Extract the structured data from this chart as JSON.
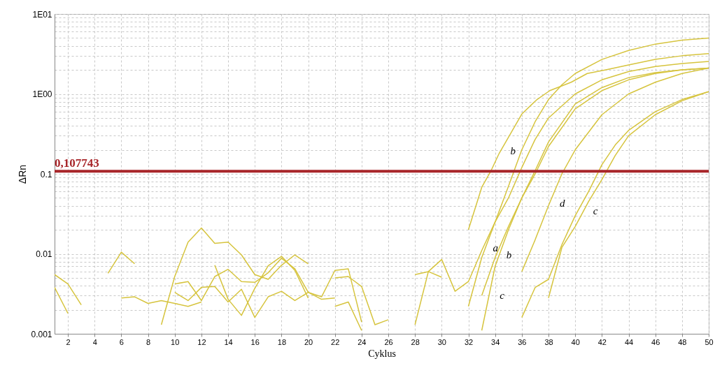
{
  "chart_data": {
    "type": "line",
    "xlabel": "Cyklus",
    "ylabel": "ΔRn",
    "log": "y",
    "grid": true,
    "marker": "none",
    "line_style": "solid",
    "xlim": [
      1,
      50
    ],
    "xticks": [
      2,
      4,
      6,
      8,
      10,
      12,
      14,
      16,
      18,
      20,
      22,
      24,
      26,
      28,
      30,
      32,
      34,
      36,
      38,
      40,
      42,
      44,
      46,
      48,
      50
    ],
    "ylim": [
      0.001,
      10
    ],
    "yticks": [
      0.001,
      {
        "value": 0.002,
        "label": null
      },
      {
        "value": 0.003,
        "label": null
      },
      {
        "value": 0.004,
        "label": null
      },
      {
        "value": 0.005,
        "label": null
      },
      {
        "value": 0.006,
        "label": null
      },
      {
        "value": 0.007,
        "label": null
      },
      {
        "value": 0.008,
        "label": null
      },
      {
        "value": 0.009,
        "label": null
      },
      0.01,
      {
        "value": 0.02,
        "label": null
      },
      {
        "value": 0.03,
        "label": null
      },
      {
        "value": 0.04,
        "label": null
      },
      {
        "value": 0.05,
        "label": null
      },
      {
        "value": 0.06,
        "label": null
      },
      {
        "value": 0.07,
        "label": null
      },
      {
        "value": 0.08,
        "label": null
      },
      {
        "value": 0.09,
        "label": null
      },
      0.1,
      {
        "value": 0.2,
        "label": null
      },
      {
        "value": 0.3,
        "label": null
      },
      {
        "value": 0.4,
        "label": null
      },
      {
        "value": 0.5,
        "label": null
      },
      {
        "value": 0.6,
        "label": null
      },
      {
        "value": 0.7,
        "label": null
      },
      {
        "value": 0.8,
        "label": null
      },
      {
        "value": 0.9,
        "label": null
      },
      {
        "value": 1,
        "label": "1E00"
      },
      {
        "value": 2,
        "label": null
      },
      {
        "value": 3,
        "label": null
      },
      {
        "value": 4,
        "label": null
      },
      {
        "value": 5,
        "label": null
      },
      {
        "value": 6,
        "label": null
      },
      {
        "value": 7,
        "label": null
      },
      {
        "value": 8,
        "label": null
      },
      {
        "value": 9,
        "label": null
      },
      {
        "value": 10,
        "label": "1E01"
      }
    ],
    "series": [
      {
        "color": "#d6c43e",
        "x": [
          32,
          33,
          33.7,
          34.3,
          35.3,
          36,
          37.1,
          38.1,
          39.7,
          40.9,
          42.3,
          44,
          46,
          48,
          50
        ],
        "values": [
          0.02,
          0.068,
          0.11,
          0.18,
          0.35,
          0.56,
          0.84,
          1.1,
          1.4,
          1.8,
          2.0,
          2.3,
          2.7,
          3.0,
          3.2
        ]
      },
      {
        "color": "#d6c43e",
        "x": [
          28,
          29,
          30,
          31,
          32,
          33,
          34,
          35,
          36,
          37,
          38,
          39,
          40,
          42,
          44,
          46,
          48,
          50
        ],
        "values": [
          0.0055,
          0.006,
          0.0085,
          0.0034,
          0.0045,
          0.011,
          0.025,
          0.07,
          0.2,
          0.45,
          0.85,
          1.3,
          1.8,
          2.7,
          3.5,
          4.2,
          4.7,
          5.0
        ]
      },
      {
        "color": "#d6c43e",
        "x": [
          32,
          33,
          34,
          35,
          36,
          37,
          38,
          40,
          42,
          44,
          46,
          48,
          50
        ],
        "values": [
          0.0022,
          0.009,
          0.025,
          0.05,
          0.12,
          0.27,
          0.5,
          1.0,
          1.5,
          1.9,
          2.2,
          2.4,
          2.55
        ]
      },
      {
        "color": "#d6c43e",
        "x": [
          33,
          34,
          35,
          36,
          37,
          38,
          40,
          42,
          44,
          46,
          48,
          50
        ],
        "values": [
          0.0011,
          0.007,
          0.02,
          0.05,
          0.11,
          0.25,
          0.75,
          1.2,
          1.6,
          1.85,
          2.0,
          2.1
        ]
      },
      {
        "color": "#d6c43e",
        "x": [
          33,
          34,
          35,
          36,
          37,
          38,
          40,
          42,
          44,
          46,
          48,
          50
        ],
        "values": [
          0.003,
          0.009,
          0.022,
          0.05,
          0.1,
          0.22,
          0.65,
          1.1,
          1.5,
          1.8,
          2.0,
          2.1
        ]
      },
      {
        "color": "#d6c43e",
        "x": [
          36,
          37,
          38,
          39,
          40,
          42,
          44,
          46,
          48,
          50
        ],
        "values": [
          0.006,
          0.015,
          0.04,
          0.1,
          0.2,
          0.55,
          1.0,
          1.4,
          1.8,
          2.1
        ]
      },
      {
        "color": "#d6c43e",
        "x": [
          36,
          37,
          38,
          39,
          40,
          41,
          42,
          43,
          44,
          46,
          48,
          50
        ],
        "values": [
          0.0016,
          0.0038,
          0.0048,
          0.013,
          0.03,
          0.06,
          0.13,
          0.23,
          0.35,
          0.6,
          0.85,
          1.07
        ]
      },
      {
        "color": "#d6c43e",
        "x": [
          38,
          39,
          40,
          41,
          42,
          43,
          44,
          46,
          48,
          50
        ],
        "values": [
          0.0028,
          0.012,
          0.022,
          0.045,
          0.085,
          0.17,
          0.3,
          0.55,
          0.82,
          1.07
        ]
      },
      {
        "color": "#d6c43e",
        "x": [
          1,
          2,
          3
        ],
        "values": [
          0.0055,
          0.0042,
          0.0023
        ]
      },
      {
        "color": "#d6c43e",
        "x": [
          1,
          2
        ],
        "values": [
          0.0038,
          0.0018
        ]
      },
      {
        "color": "#d6c43e",
        "x": [
          5,
          6,
          7
        ],
        "values": [
          0.0057,
          0.0105,
          0.0075
        ]
      },
      {
        "color": "#d6c43e",
        "x": [
          6,
          7,
          8,
          9,
          10,
          11,
          12
        ],
        "values": [
          0.0028,
          0.0029,
          0.0024,
          0.0026,
          0.0024,
          0.0022,
          0.0025
        ]
      },
      {
        "color": "#d6c43e",
        "x": [
          9,
          10,
          11,
          12,
          13,
          14,
          15,
          16,
          17,
          18,
          19,
          20
        ],
        "values": [
          0.0013,
          0.0052,
          0.014,
          0.021,
          0.0135,
          0.014,
          0.0097,
          0.0055,
          0.0048,
          0.0072,
          0.0097,
          0.0075
        ]
      },
      {
        "color": "#d6c43e",
        "x": [
          10,
          11,
          12,
          13,
          14,
          15,
          16,
          17,
          18,
          19,
          20,
          21,
          22,
          23,
          24
        ],
        "values": [
          0.0042,
          0.0045,
          0.0026,
          0.0052,
          0.0064,
          0.0045,
          0.0044,
          0.0058,
          0.0088,
          0.0065,
          0.0033,
          0.0029,
          0.0062,
          0.0065,
          0.0014
        ]
      },
      {
        "color": "#d6c43e",
        "x": [
          10,
          11,
          12,
          13,
          14,
          15,
          16,
          17,
          18,
          19,
          20,
          21,
          22
        ],
        "values": [
          0.0033,
          0.0026,
          0.0038,
          0.0039,
          0.0025,
          0.0036,
          0.0016,
          0.0029,
          0.0034,
          0.0026,
          0.0033,
          0.0027,
          0.0028
        ]
      },
      {
        "color": "#d6c43e",
        "x": [
          13,
          14,
          15,
          16,
          17,
          18,
          19,
          20
        ],
        "values": [
          0.0072,
          0.0027,
          0.0017,
          0.0037,
          0.0071,
          0.0093,
          0.0062,
          0.0028
        ]
      },
      {
        "color": "#d6c43e",
        "x": [
          22,
          23,
          24,
          25,
          26
        ],
        "values": [
          0.005,
          0.0052,
          0.0039,
          0.0013,
          0.0015
        ]
      },
      {
        "color": "#d6c43e",
        "x": [
          22,
          23,
          24
        ],
        "values": [
          0.0022,
          0.0025,
          0.0011
        ]
      },
      {
        "color": "#d6c43e",
        "x": [
          28,
          29,
          30
        ],
        "values": [
          0.0013,
          0.006,
          0.0051
        ]
      }
    ],
    "ref_lines": [
      {
        "axis": "y",
        "value": 0.107743,
        "label": "0,107743",
        "color": "#a8262a"
      }
    ],
    "annotations": [
      {
        "text": "a",
        "x": 33,
        "y": 0.011
      },
      {
        "text": "b",
        "x": 34.3,
        "y": 0.18
      },
      {
        "text": "b",
        "x": 34,
        "y": 0.009
      },
      {
        "text": "c",
        "x": 33.5,
        "y": 0.0028
      },
      {
        "text": "d",
        "x": 38,
        "y": 0.04
      },
      {
        "text": "c",
        "x": 40.5,
        "y": 0.0315
      }
    ]
  }
}
